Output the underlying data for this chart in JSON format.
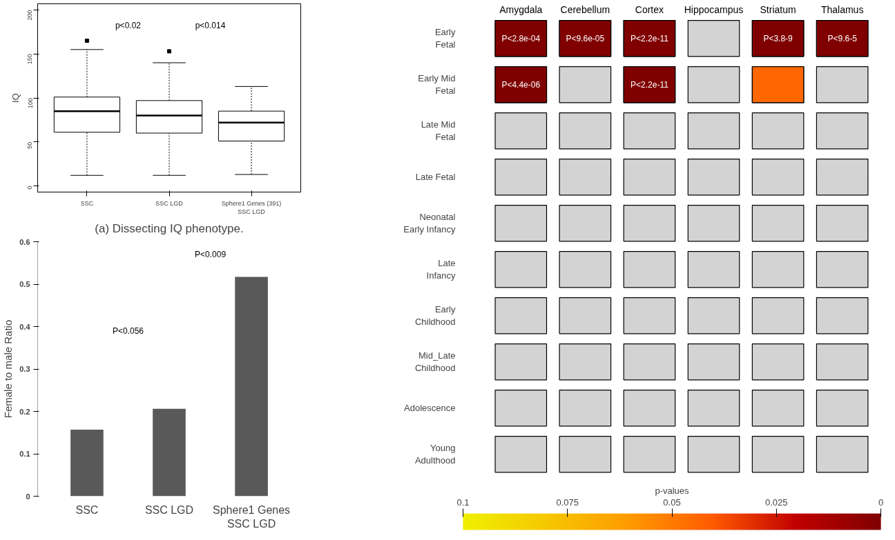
{
  "chart_data": [
    {
      "type": "box",
      "ylabel": "IQ",
      "subtitle": "(a) Dissecting IQ phenotype.",
      "categories": [
        "SSC",
        "SSC LGD",
        "Sphere1 Genes (391)\nSSC LGD"
      ],
      "ylim": [
        -7,
        207
      ],
      "yticks": [
        0,
        50,
        100,
        150,
        200
      ],
      "grid": false,
      "boxes": [
        {
          "low": 12,
          "q1": 61,
          "median": 85,
          "q3": 101,
          "high": 155,
          "outliers": [
            165
          ]
        },
        {
          "low": 12,
          "q1": 60,
          "median": 80,
          "q3": 97,
          "high": 140,
          "outliers": [
            153
          ]
        },
        {
          "low": 13,
          "q1": 51,
          "median": 72,
          "q3": 85,
          "high": 113
        }
      ],
      "annotations": [
        "p<0.02",
        "p<0.014"
      ]
    },
    {
      "type": "bar",
      "ylabel": "Female to male Ratio",
      "categories": [
        "SSC",
        "SSC LGD",
        "Sphere1 Genes\nSSC LGD"
      ],
      "values": [
        0.157,
        0.206,
        0.517
      ],
      "color": "#595959",
      "ylim": [
        0,
        0.6
      ],
      "yticks": [
        0,
        0.1,
        0.2,
        0.3,
        0.4,
        0.5,
        0.6
      ],
      "grid": false,
      "annotations": [
        "P<0.056",
        "P<0.009"
      ]
    },
    {
      "type": "heatmap",
      "clabel": "p-values",
      "categories": [
        "Amygdala",
        "Cerebellum",
        "Cortex",
        "Hippocampus",
        "Striatum",
        "Thalamus"
      ],
      "y_categories": [
        "Early\nFetal",
        "Early Mid\nFetal",
        "Late Mid\nFetal",
        "Late Fetal",
        "Neonatal\nEarly Infancy",
        "Late\nInfancy",
        "Early\nChildhood",
        "Mid_Late\nChildhood",
        "Adolescence",
        "Young\nAdulthood"
      ],
      "cells": [
        [
          0,
          0,
          0,
          null,
          0,
          0
        ],
        [
          0,
          null,
          0,
          null,
          0.045,
          null
        ],
        [
          null,
          null,
          null,
          null,
          null,
          null
        ],
        [
          null,
          null,
          null,
          null,
          null,
          null
        ],
        [
          null,
          null,
          null,
          null,
          null,
          null
        ],
        [
          null,
          null,
          null,
          null,
          null,
          null
        ],
        [
          null,
          null,
          null,
          null,
          null,
          null
        ],
        [
          null,
          null,
          null,
          null,
          null,
          null
        ],
        [
          null,
          null,
          null,
          null,
          null,
          null
        ],
        [
          null,
          null,
          null,
          null,
          null,
          null
        ]
      ],
      "cell_labels": [
        [
          "P<2.8e-04",
          "P<9.6e-05",
          "P<2.2e-11",
          null,
          "P<3.8-9",
          "P<9.6-5"
        ],
        [
          "P<4.4e-06",
          null,
          "P<2.2e-11",
          null,
          null,
          null
        ],
        [
          null,
          null,
          null,
          null,
          null,
          null
        ],
        [
          null,
          null,
          null,
          null,
          null,
          null
        ],
        [
          null,
          null,
          null,
          null,
          null,
          null
        ],
        [
          null,
          null,
          null,
          null,
          null,
          null
        ],
        [
          null,
          null,
          null,
          null,
          null,
          null
        ],
        [
          null,
          null,
          null,
          null,
          null,
          null
        ],
        [
          null,
          null,
          null,
          null,
          null,
          null
        ],
        [
          null,
          null,
          null,
          null,
          null,
          null
        ]
      ],
      "clim": [
        0.1,
        0
      ],
      "cticks": [
        0.1,
        0.075,
        0.05,
        0.025,
        0
      ]
    }
  ]
}
